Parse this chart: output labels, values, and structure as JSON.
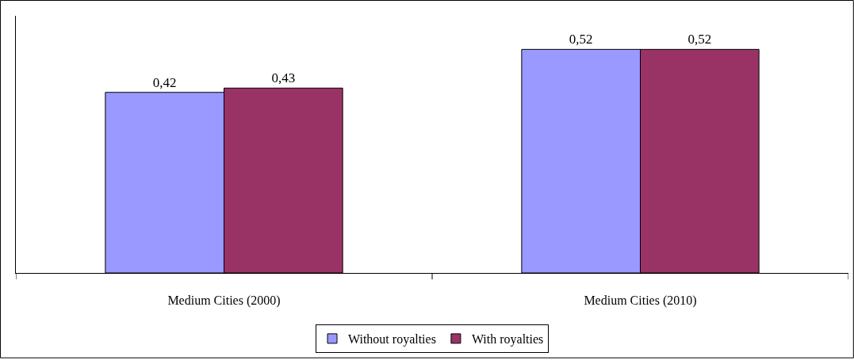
{
  "chart_data": {
    "type": "bar",
    "categories": [
      "Medium Cities (2000)",
      "Medium Cities (2010)"
    ],
    "series": [
      {
        "name": "Without royalties",
        "color": "#9999ff",
        "values": [
          0.42,
          0.52
        ],
        "value_labels": [
          "0,42",
          "0,52"
        ]
      },
      {
        "name": "With royalties",
        "color": "#993366",
        "values": [
          0.43,
          0.52
        ],
        "value_labels": [
          "0,43",
          "0,52"
        ]
      }
    ],
    "legend": "bottom"
  }
}
